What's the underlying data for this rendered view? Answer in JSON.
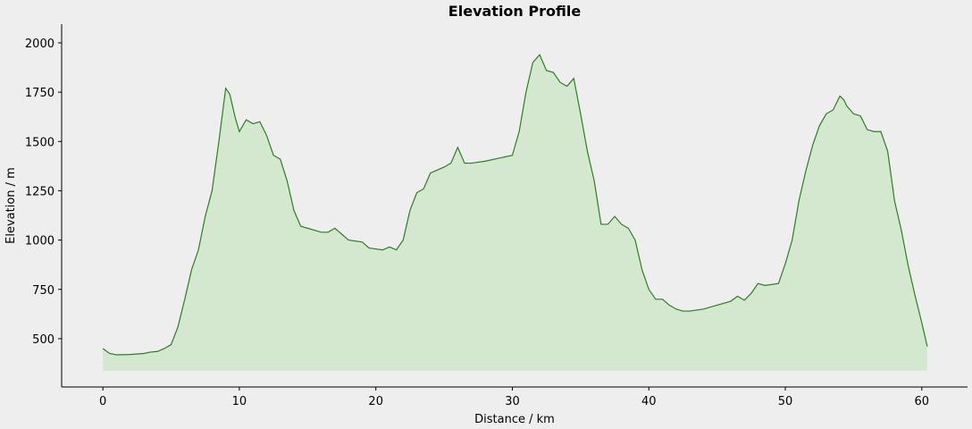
{
  "chart_data": {
    "type": "area",
    "title": "Elevation Profile",
    "x_label": "Distance / km",
    "y_label": "Elevation / m",
    "x": [
      0,
      0.5,
      1,
      2,
      3,
      3.5,
      4,
      4.5,
      5,
      5.5,
      6,
      6.5,
      7,
      7.5,
      8,
      8.5,
      9,
      9.3,
      9.7,
      10,
      10.5,
      11,
      11.5,
      12,
      12.5,
      13,
      13.5,
      14,
      14.5,
      15,
      16,
      16.5,
      17,
      17.5,
      18,
      19,
      19.5,
      20,
      20.5,
      21,
      21.5,
      22,
      22.5,
      23,
      23.5,
      24,
      25,
      25.5,
      26,
      26.5,
      27,
      28,
      29,
      30,
      30.5,
      31,
      31.5,
      32,
      32.5,
      33,
      33.5,
      34,
      34.5,
      35,
      35.5,
      36,
      36.5,
      37,
      37.5,
      38,
      38.5,
      39,
      39.5,
      40,
      40.5,
      41,
      41.5,
      42,
      42.5,
      43,
      44,
      45,
      46,
      46.5,
      47,
      47.5,
      48,
      48.5,
      49.5,
      50,
      50.5,
      51,
      51.5,
      52,
      52.5,
      53,
      53.5,
      54,
      54.3,
      54.5,
      55,
      55.5,
      56,
      56.5,
      57,
      57.5,
      58,
      58.5,
      59,
      59.5,
      60,
      60.4
    ],
    "values": [
      450,
      425,
      418,
      420,
      425,
      432,
      435,
      450,
      470,
      560,
      700,
      850,
      950,
      1120,
      1250,
      1500,
      1770,
      1740,
      1620,
      1550,
      1610,
      1590,
      1600,
      1530,
      1430,
      1410,
      1300,
      1150,
      1070,
      1060,
      1040,
      1040,
      1060,
      1030,
      1000,
      990,
      960,
      955,
      950,
      965,
      950,
      1000,
      1150,
      1240,
      1260,
      1340,
      1370,
      1390,
      1470,
      1390,
      1390,
      1400,
      1415,
      1430,
      1550,
      1750,
      1900,
      1940,
      1860,
      1850,
      1800,
      1780,
      1820,
      1640,
      1450,
      1300,
      1080,
      1080,
      1120,
      1080,
      1060,
      1000,
      850,
      750,
      700,
      700,
      670,
      650,
      640,
      640,
      650,
      670,
      690,
      715,
      695,
      730,
      780,
      770,
      780,
      880,
      1000,
      1200,
      1350,
      1480,
      1580,
      1640,
      1660,
      1730,
      1710,
      1680,
      1640,
      1630,
      1560,
      1550,
      1550,
      1450,
      1200,
      1050,
      870,
      720,
      580,
      460
    ],
    "fill_to": 337,
    "line_color": "#2b7f1f",
    "fill_color": "#d4e8cf",
    "xlim": [
      -3.02,
      63.35
    ],
    "ylim": [
      255,
      2095
    ],
    "xticks": [
      0,
      10,
      20,
      30,
      40,
      50,
      60
    ],
    "yticks": [
      500,
      750,
      1000,
      1250,
      1500,
      1750,
      2000
    ]
  }
}
